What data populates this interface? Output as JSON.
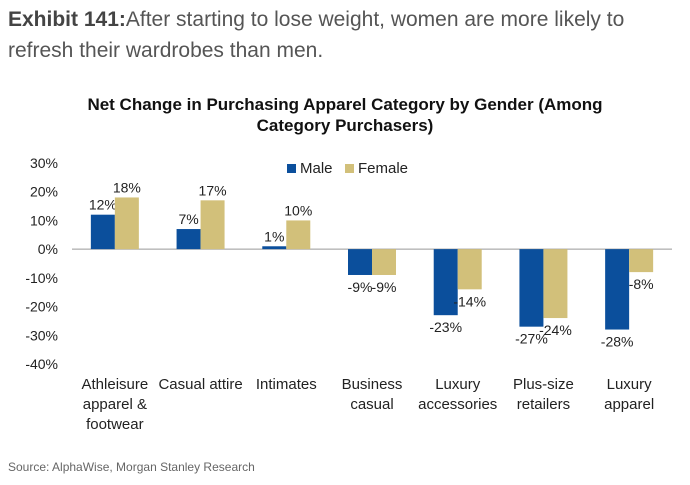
{
  "exhibit": {
    "label": "Exhibit 141:",
    "text": "After starting to lose weight, women are more likely to refresh their wardrobes than men."
  },
  "source": "Source: AlphaWise, Morgan Stanley Research",
  "colors": {
    "male": "#0b4f9c",
    "female": "#d2c07a",
    "axis": "#999999"
  },
  "chart_data": {
    "type": "bar",
    "title_lines": [
      "Net Change in Purchasing Apparel Category by Gender (Among",
      "Category Purchasers)"
    ],
    "categories": [
      [
        "Athleisure",
        "apparel &",
        "footwear"
      ],
      [
        "Casual attire"
      ],
      [
        "Intimates"
      ],
      [
        "Business",
        "casual"
      ],
      [
        "Luxury",
        "accessories"
      ],
      [
        "Plus-size",
        "retailers"
      ],
      [
        "Luxury",
        "apparel"
      ]
    ],
    "series": [
      {
        "name": "Male",
        "values": [
          12,
          7,
          1,
          -9,
          -23,
          -27,
          -28
        ]
      },
      {
        "name": "Female",
        "values": [
          18,
          17,
          10,
          -9,
          -14,
          -24,
          -8
        ]
      }
    ],
    "data_labels": [
      [
        "12%",
        "7%",
        "1%",
        "-9%",
        "-23%",
        "-27%",
        "-28%"
      ],
      [
        "18%",
        "17%",
        "10%",
        "-9%",
        "-14%",
        "-24%",
        "-8%"
      ]
    ],
    "ylim": [
      -40,
      30
    ],
    "yticks": [
      30,
      20,
      10,
      0,
      -10,
      -20,
      -30,
      -40
    ],
    "ytick_labels": [
      "30%",
      "20%",
      "10%",
      "0%",
      "-10%",
      "-20%",
      "-30%",
      "-40%"
    ],
    "legend_position": "top-center",
    "grid": false
  }
}
